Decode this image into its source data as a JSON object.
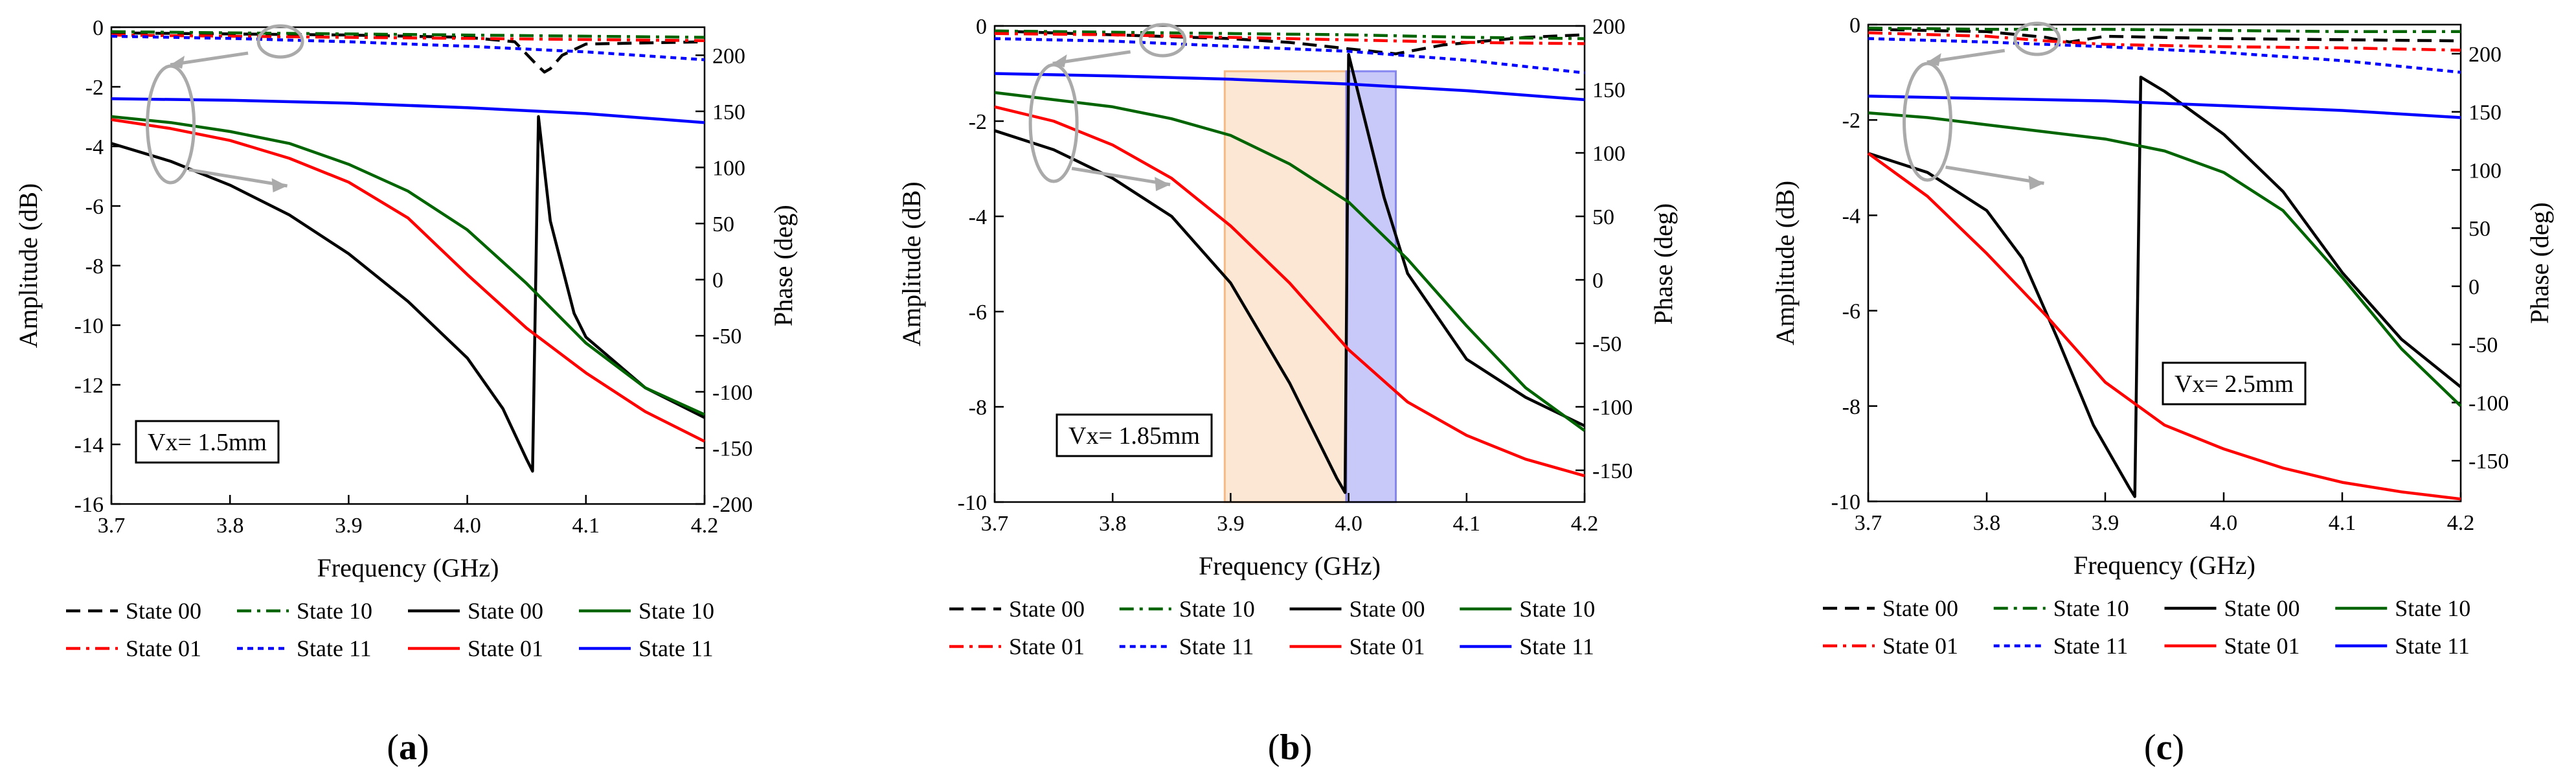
{
  "series_styles": {
    "State 00": {
      "color": "#000000"
    },
    "State 10": {
      "color": "#006400"
    },
    "State 01": {
      "color": "#ff0000"
    },
    "State 11": {
      "color": "#0000ff"
    }
  },
  "legend": {
    "phase_group": [
      "State 00",
      "State 10",
      "State 01",
      "State 11"
    ],
    "amplitude_group": [
      "State 00",
      "State 10",
      "State 01",
      "State 11"
    ]
  },
  "chart_data": [
    {
      "type": "line",
      "caption": "(a)",
      "caption_letter": "a",
      "annotation": "Vx= 1.5mm",
      "xlabel": "Frequency (GHz)",
      "ylabel": "Amplitude (dB)",
      "y2label": "Phase (deg)",
      "xlim": [
        3.7,
        4.2
      ],
      "ylim": [
        -16,
        0
      ],
      "y2lim": [
        -200,
        225
      ],
      "xticks": [
        "3.7",
        "3.8",
        "3.9",
        "4.0",
        "4.1",
        "4.2"
      ],
      "yticks": [
        "0",
        "-2",
        "-4",
        "-6",
        "-8",
        "-10",
        "-12",
        "-14",
        "-16"
      ],
      "y2ticks": [
        "200",
        "150",
        "100",
        "50",
        "0",
        "-50",
        "-100",
        "-150",
        "-200"
      ],
      "amplitude": [
        {
          "name": "State 00",
          "x": [
            3.7,
            3.75,
            3.8,
            3.85,
            3.9,
            3.95,
            4.0,
            4.03,
            4.05,
            4.055,
            4.06,
            4.07,
            4.09,
            4.1,
            4.15,
            4.2
          ],
          "y": [
            -3.9,
            -4.5,
            -5.3,
            -6.3,
            -7.6,
            -9.2,
            -11.1,
            -12.8,
            -14.5,
            -14.9,
            -3.0,
            -6.5,
            -9.6,
            -10.4,
            -12.1,
            -13.1
          ]
        },
        {
          "name": "State 10",
          "x": [
            3.7,
            3.75,
            3.8,
            3.85,
            3.9,
            3.95,
            4.0,
            4.05,
            4.1,
            4.15,
            4.2
          ],
          "y": [
            -3.0,
            -3.2,
            -3.5,
            -3.9,
            -4.6,
            -5.5,
            -6.8,
            -8.6,
            -10.6,
            -12.1,
            -13.0
          ]
        },
        {
          "name": "State 01",
          "x": [
            3.7,
            3.75,
            3.8,
            3.85,
            3.9,
            3.95,
            4.0,
            4.05,
            4.1,
            4.15,
            4.2
          ],
          "y": [
            -3.1,
            -3.4,
            -3.8,
            -4.4,
            -5.2,
            -6.4,
            -8.3,
            -10.1,
            -11.6,
            -12.9,
            -13.9
          ]
        },
        {
          "name": "State 11",
          "x": [
            3.7,
            3.8,
            3.9,
            4.0,
            4.1,
            4.2
          ],
          "y": [
            -2.4,
            -2.45,
            -2.55,
            -2.7,
            -2.9,
            -3.2
          ]
        }
      ],
      "phase": [
        {
          "name": "State 00",
          "x": [
            3.7,
            3.8,
            3.9,
            4.0,
            4.04,
            4.06,
            4.065,
            4.07,
            4.08,
            4.1,
            4.2
          ],
          "y": [
            220,
            219,
            218,
            216,
            212,
            190,
            185,
            188,
            200,
            210,
            212
          ]
        },
        {
          "name": "State 10",
          "x": [
            3.7,
            3.8,
            3.9,
            4.0,
            4.1,
            4.2
          ],
          "y": [
            221,
            220,
            219,
            218,
            217,
            216
          ]
        },
        {
          "name": "State 01",
          "x": [
            3.7,
            3.8,
            3.9,
            4.0,
            4.1,
            4.2
          ],
          "y": [
            218,
            217,
            216,
            215,
            214,
            213
          ]
        },
        {
          "name": "State 11",
          "x": [
            3.7,
            3.8,
            3.9,
            4.0,
            4.1,
            4.2
          ],
          "y": [
            217,
            215,
            212,
            208,
            203,
            196
          ]
        }
      ]
    },
    {
      "type": "line",
      "caption": "(b)",
      "caption_letter": "b",
      "annotation": "Vx= 1.85mm",
      "xlabel": "Frequency (GHz)",
      "ylabel": "Amplitude (dB)",
      "y2label": "Phase (deg)",
      "xlim": [
        3.7,
        4.2
      ],
      "ylim": [
        -10,
        0
      ],
      "y2lim": [
        -175,
        200
      ],
      "xticks": [
        "3.7",
        "3.8",
        "3.9",
        "4.0",
        "4.1",
        "4.2"
      ],
      "yticks": [
        "0",
        "-2",
        "-4",
        "-6",
        "-8",
        "-10"
      ],
      "y2ticks": [
        "200",
        "150",
        "100",
        "50",
        "0",
        "-50",
        "-100",
        "-150"
      ],
      "bands": [
        {
          "from": 3.895,
          "to": 3.998,
          "color": "#f5b27a",
          "opacity": 0.32
        },
        {
          "from": 3.998,
          "to": 4.04,
          "color": "#7b7cf0",
          "opacity": 0.42
        }
      ],
      "amplitude": [
        {
          "name": "State 00",
          "x": [
            3.7,
            3.75,
            3.8,
            3.85,
            3.9,
            3.95,
            3.99,
            3.997,
            4.0,
            4.03,
            4.05,
            4.1,
            4.15,
            4.2
          ],
          "y": [
            -2.2,
            -2.6,
            -3.2,
            -4.0,
            -5.4,
            -7.5,
            -9.5,
            -9.8,
            -0.6,
            -3.6,
            -5.2,
            -7.0,
            -7.8,
            -8.4
          ]
        },
        {
          "name": "State 10",
          "x": [
            3.7,
            3.75,
            3.8,
            3.85,
            3.9,
            3.95,
            4.0,
            4.05,
            4.1,
            4.15,
            4.2
          ],
          "y": [
            -1.4,
            -1.55,
            -1.7,
            -1.95,
            -2.3,
            -2.9,
            -3.7,
            -4.9,
            -6.3,
            -7.6,
            -8.5
          ]
        },
        {
          "name": "State 01",
          "x": [
            3.7,
            3.75,
            3.8,
            3.85,
            3.9,
            3.95,
            4.0,
            4.05,
            4.1,
            4.15,
            4.2
          ],
          "y": [
            -1.7,
            -2.0,
            -2.5,
            -3.2,
            -4.2,
            -5.4,
            -6.8,
            -7.9,
            -8.6,
            -9.1,
            -9.45
          ]
        },
        {
          "name": "State 11",
          "x": [
            3.7,
            3.8,
            3.9,
            4.0,
            4.1,
            4.2
          ],
          "y": [
            -1.0,
            -1.05,
            -1.12,
            -1.22,
            -1.36,
            -1.55
          ]
        }
      ],
      "phase": [
        {
          "name": "State 00",
          "x": [
            3.7,
            3.8,
            3.9,
            3.95,
            4.0,
            4.04,
            4.08,
            4.15,
            4.2
          ],
          "y": [
            196,
            193,
            190,
            187,
            182,
            178,
            185,
            191,
            193
          ]
        },
        {
          "name": "State 10",
          "x": [
            3.7,
            3.8,
            3.9,
            4.0,
            4.1,
            4.2
          ],
          "y": [
            196,
            195,
            194,
            193,
            191,
            190
          ]
        },
        {
          "name": "State 01",
          "x": [
            3.7,
            3.8,
            3.9,
            4.0,
            4.1,
            4.2
          ],
          "y": [
            194,
            193,
            191,
            189,
            187,
            186
          ]
        },
        {
          "name": "State 11",
          "x": [
            3.7,
            3.8,
            3.9,
            4.0,
            4.1,
            4.2
          ],
          "y": [
            190,
            188,
            184,
            180,
            173,
            163
          ]
        }
      ]
    },
    {
      "type": "line",
      "caption": "(c)",
      "caption_letter": "c",
      "annotation": "Vx= 2.5mm",
      "xlabel": "Frequency (GHz)",
      "ylabel": "Amplitude (dB)",
      "y2label": "Phase (deg)",
      "xlim": [
        3.7,
        4.2
      ],
      "ylim": [
        -10,
        0
      ],
      "y2lim": [
        -185,
        225
      ],
      "xticks": [
        "3.7",
        "3.8",
        "3.9",
        "4.0",
        "4.1",
        "4.2"
      ],
      "yticks": [
        "0",
        "-2",
        "-4",
        "-6",
        "-8",
        "-10"
      ],
      "y2ticks": [
        "200",
        "150",
        "100",
        "50",
        "0",
        "-50",
        "-100",
        "-150"
      ],
      "amplitude": [
        {
          "name": "State 00",
          "x": [
            3.7,
            3.75,
            3.8,
            3.83,
            3.86,
            3.89,
            3.92,
            3.925,
            3.93,
            3.95,
            4.0,
            4.05,
            4.1,
            4.15,
            4.2
          ],
          "y": [
            -2.7,
            -3.1,
            -3.9,
            -4.9,
            -6.6,
            -8.4,
            -9.7,
            -9.9,
            -1.1,
            -1.4,
            -2.3,
            -3.5,
            -5.2,
            -6.6,
            -7.6
          ]
        },
        {
          "name": "State 10",
          "x": [
            3.7,
            3.75,
            3.8,
            3.85,
            3.9,
            3.95,
            4.0,
            4.05,
            4.1,
            4.15,
            4.2
          ],
          "y": [
            -1.85,
            -1.95,
            -2.1,
            -2.25,
            -2.4,
            -2.65,
            -3.1,
            -3.9,
            -5.3,
            -6.8,
            -8.0
          ]
        },
        {
          "name": "State 01",
          "x": [
            3.7,
            3.75,
            3.8,
            3.85,
            3.9,
            3.95,
            4.0,
            4.05,
            4.1,
            4.15,
            4.2
          ],
          "y": [
            -2.7,
            -3.6,
            -4.8,
            -6.1,
            -7.5,
            -8.4,
            -8.9,
            -9.3,
            -9.6,
            -9.8,
            -9.95
          ]
        },
        {
          "name": "State 11",
          "x": [
            3.7,
            3.8,
            3.9,
            4.0,
            4.1,
            4.2
          ],
          "y": [
            -1.5,
            -1.55,
            -1.6,
            -1.7,
            -1.8,
            -1.95
          ]
        }
      ],
      "phase": [
        {
          "name": "State 00",
          "x": [
            3.7,
            3.8,
            3.85,
            3.87,
            3.9,
            4.0,
            4.1,
            4.2
          ],
          "y": [
            221,
            219,
            214,
            210,
            215,
            213,
            212,
            211
          ]
        },
        {
          "name": "State 10",
          "x": [
            3.7,
            3.8,
            3.9,
            4.0,
            4.1,
            4.2
          ],
          "y": [
            222,
            221,
            221,
            220,
            219,
            219
          ]
        },
        {
          "name": "State 01",
          "x": [
            3.7,
            3.8,
            3.85,
            3.9,
            4.0,
            4.1,
            4.2
          ],
          "y": [
            218,
            215,
            211,
            208,
            206,
            205,
            203
          ]
        },
        {
          "name": "State 11",
          "x": [
            3.7,
            3.8,
            3.9,
            4.0,
            4.1,
            4.2
          ],
          "y": [
            213,
            210,
            206,
            201,
            194,
            184
          ]
        }
      ]
    }
  ]
}
